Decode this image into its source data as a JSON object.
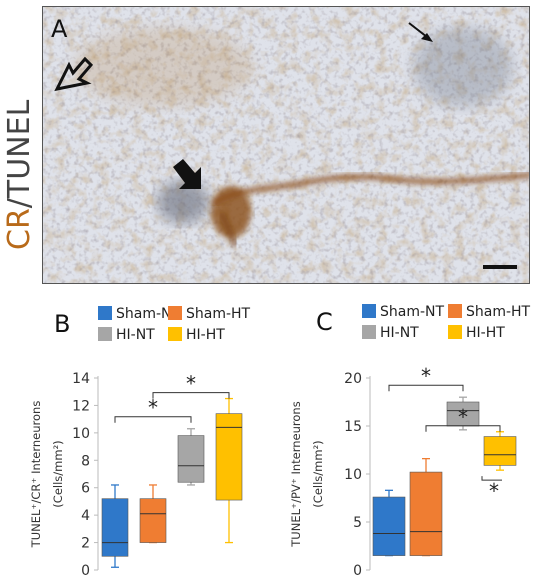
{
  "panel_a": {
    "letter": "A",
    "side_label_cr": "CR",
    "side_label_rest": "/TUNEL",
    "colors": {
      "cr": "#b86a1a",
      "tunel": "#444444"
    }
  },
  "legend": {
    "items": [
      {
        "label": "Sham-NT",
        "color": "#2f78c9"
      },
      {
        "label": "Sham-HT",
        "color": "#ef7d32"
      },
      {
        "label": "HI-NT",
        "color": "#a6a6a6"
      },
      {
        "label": "HI-HT",
        "color": "#ffc000"
      }
    ]
  },
  "chart_data": [
    {
      "type": "box",
      "panel": "B",
      "ylabel_line1": "TUNEL⁺/CR⁺ Interneurons",
      "ylabel_line2": "(Cells/mm²)",
      "ylim": [
        0,
        14
      ],
      "yticks": [
        "0",
        "2",
        "4",
        "6",
        "8",
        "10",
        "12",
        "14"
      ],
      "categories": [
        "Sham-NT",
        "Sham-HT",
        "HI-NT",
        "HI-HT"
      ],
      "boxes": [
        {
          "name": "Sham-NT",
          "min": 0.2,
          "q1": 1.0,
          "median": 2.0,
          "q3": 5.2,
          "max": 6.2
        },
        {
          "name": "Sham-HT",
          "min": 2.0,
          "q1": 2.0,
          "median": 4.1,
          "q3": 5.2,
          "max": 6.2
        },
        {
          "name": "HI-NT",
          "min": 6.2,
          "q1": 6.4,
          "median": 7.6,
          "q3": 9.8,
          "max": 10.3
        },
        {
          "name": "HI-HT",
          "min": 2.0,
          "q1": 5.1,
          "median": 10.4,
          "q3": 11.4,
          "max": 12.5
        }
      ],
      "significance": [
        {
          "from": 0,
          "to": 2,
          "label": "*"
        },
        {
          "from": 1,
          "to": 3,
          "label": "*"
        }
      ]
    },
    {
      "type": "box",
      "panel": "C",
      "ylabel_line1": "TUNEL⁺/PV⁺ Interneurons",
      "ylabel_line2": "(Cells/mm²)",
      "ylim": [
        0,
        20
      ],
      "yticks": [
        "0",
        "5",
        "10",
        "15",
        "20"
      ],
      "categories": [
        "Sham-NT",
        "Sham-HT",
        "HI-NT",
        "HI-HT"
      ],
      "boxes": [
        {
          "name": "Sham-NT",
          "min": 1.5,
          "q1": 1.5,
          "median": 3.8,
          "q3": 7.6,
          "max": 8.3
        },
        {
          "name": "Sham-HT",
          "min": 1.5,
          "q1": 1.5,
          "median": 4.0,
          "q3": 10.2,
          "max": 11.6
        },
        {
          "name": "HI-NT",
          "min": 14.6,
          "q1": 15.0,
          "median": 16.6,
          "q3": 17.5,
          "max": 18.0
        },
        {
          "name": "HI-HT",
          "min": 10.4,
          "q1": 10.9,
          "median": 12.0,
          "q3": 13.9,
          "max": 14.4
        }
      ],
      "significance": [
        {
          "from": 0,
          "to": 2,
          "label": "*"
        },
        {
          "from": 1,
          "to": 3,
          "label": "*"
        },
        {
          "from": 3,
          "to": 3,
          "label": "*",
          "below": true
        }
      ]
    }
  ]
}
